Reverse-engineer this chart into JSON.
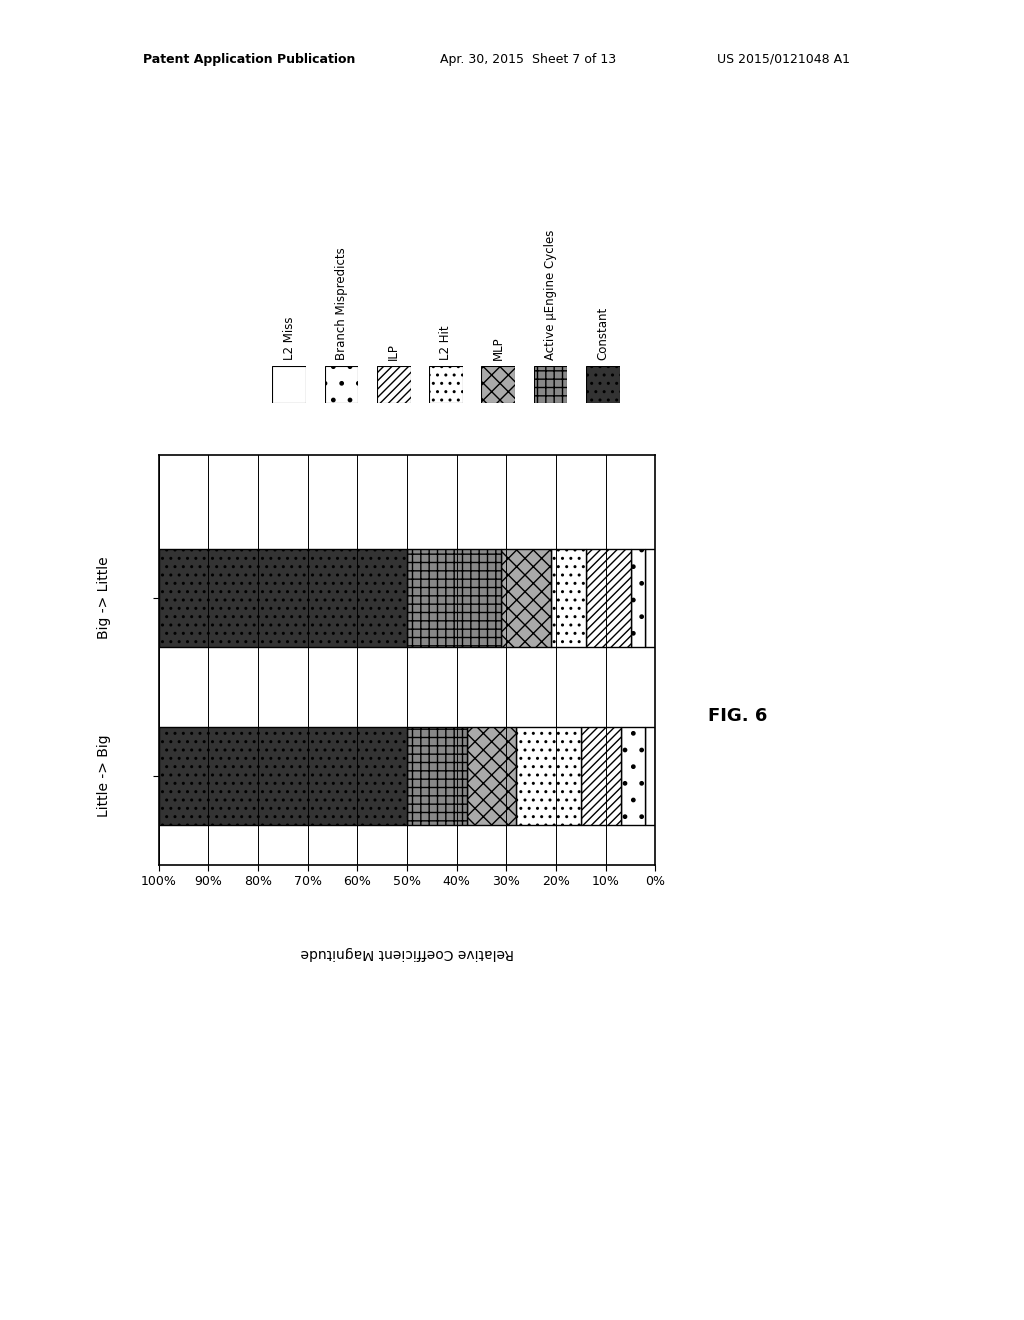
{
  "categories": [
    "Big -> Little",
    "Little -> Big"
  ],
  "segment_labels": [
    "L2 Miss",
    "Branch Mispredicts",
    "ILP",
    "L2 Hit",
    "MLP",
    "Active μEngine Cycles",
    "Constant"
  ],
  "big_little": [
    0.02,
    0.03,
    0.09,
    0.07,
    0.1,
    0.19,
    0.5
  ],
  "little_big": [
    0.02,
    0.05,
    0.08,
    0.13,
    0.1,
    0.12,
    0.5
  ],
  "patterns": [
    {
      "hatch": "",
      "fc": "white",
      "ec": "black"
    },
    {
      "hatch": ".",
      "fc": "white",
      "ec": "black"
    },
    {
      "hatch": "////",
      "fc": "white",
      "ec": "black"
    },
    {
      "hatch": "..",
      "fc": "white",
      "ec": "black"
    },
    {
      "hatch": "xx",
      "fc": "#aaaaaa",
      "ec": "black"
    },
    {
      "hatch": "++",
      "fc": "#888888",
      "ec": "black"
    },
    {
      "hatch": "..",
      "fc": "#333333",
      "ec": "black"
    }
  ],
  "ylabel": "Relative Coefficient Magnitude",
  "fig_label": "FIG. 6",
  "patent_line1": "Patent Application Publication",
  "patent_line2": "Apr. 30, 2015  Sheet 7 of 13",
  "patent_line3": "US 2015/0121048 A1"
}
